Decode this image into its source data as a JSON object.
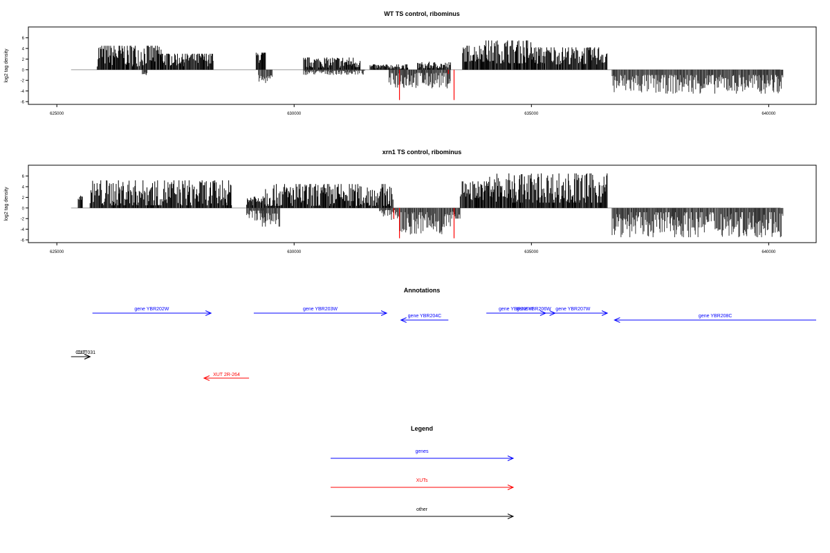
{
  "colors": {
    "forward": "#000000",
    "reverse": "#333333",
    "highlight": "#ff0000",
    "gene": "#0000ff",
    "xut": "#ff0000",
    "other": "#000000",
    "frame": "#000000",
    "zero_line": "#999999"
  },
  "chart_data": [
    {
      "type": "bar",
      "title": "WT TS control, ribominus",
      "ylabel": "log2 tag density",
      "xlim": [
        625000,
        641000
      ],
      "ylim": [
        -6,
        7
      ],
      "x_ticks": [
        625000,
        630000,
        635000,
        640000
      ],
      "x_tick_labels": [
        "625000",
        "630000",
        "635000",
        "640000"
      ],
      "y_ticks": [
        -6,
        -4,
        -2,
        0,
        2,
        4,
        6
      ],
      "y_tick_labels": [
        "-6",
        "-4",
        "-2",
        "0",
        "2",
        "4",
        "6"
      ],
      "baseline": [
        625300,
        640250
      ],
      "series": [
        {
          "strand": "+",
          "ranges": [
            [
              625850,
              627200,
              3.0,
              0.5,
              4.5
            ],
            [
              627200,
              628300,
              2.2,
              0.4,
              3.0
            ],
            [
              629200,
              629400,
              2.5,
              1.0,
              3.2
            ],
            [
              630200,
              631400,
              1.4,
              0.4,
              2.3
            ],
            [
              631600,
              632400,
              0.6,
              0.2,
              1.0
            ],
            [
              632600,
              633300,
              0.8,
              0.3,
              1.5
            ],
            [
              633550,
              634000,
              3.2,
              1.5,
              4.5
            ],
            [
              634000,
              635000,
              3.5,
              1.2,
              5.5
            ],
            [
              635000,
              636600,
              2.8,
              1.0,
              4.2
            ]
          ]
        },
        {
          "strand": "-",
          "ranges": [
            [
              626800,
              626900,
              -0.8,
              -0.5,
              -1.0
            ],
            [
              629250,
              629550,
              -1.8,
              -1.0,
              -2.5
            ],
            [
              630200,
              631500,
              -0.5,
              -0.2,
              -1.0
            ],
            [
              632000,
              633300,
              -1.8,
              -0.6,
              -3.5
            ],
            [
              636700,
              640300,
              -2.5,
              -1.0,
              -4.5
            ]
          ]
        },
        {
          "strand": "highlight",
          "points": [
            [
              632220,
              -5.7
            ],
            [
              633370,
              -5.7
            ],
            [
              633250,
              -0.8
            ]
          ]
        }
      ]
    },
    {
      "type": "bar",
      "title": "xrn1 TS control, ribominus",
      "ylabel": "log2 tag density",
      "xlim": [
        625000,
        641000
      ],
      "ylim": [
        -6,
        7
      ],
      "x_ticks": [
        625000,
        630000,
        635000,
        640000
      ],
      "x_tick_labels": [
        "625000",
        "630000",
        "635000",
        "640000"
      ],
      "y_ticks": [
        -6,
        -4,
        -2,
        0,
        2,
        4,
        6
      ],
      "y_tick_labels": [
        "-6",
        "-4",
        "-2",
        "0",
        "2",
        "4",
        "6"
      ],
      "baseline": [
        625300,
        640250
      ],
      "series": [
        {
          "strand": "+",
          "ranges": [
            [
              625450,
              625550,
              2.0,
              1.5,
              2.3
            ],
            [
              625700,
              628700,
              2.8,
              0.5,
              5.2
            ],
            [
              629000,
              629300,
              1.5,
              0.5,
              2.5
            ],
            [
              629300,
              632100,
              2.4,
              0.4,
              4.5
            ],
            [
              633500,
              634100,
              3.5,
              1.5,
              5.0
            ],
            [
              634100,
              636600,
              3.6,
              1.0,
              6.5
            ]
          ]
        },
        {
          "strand": "-",
          "ranges": [
            [
              629000,
              629400,
              -1.2,
              -0.5,
              -2.5
            ],
            [
              629300,
              629700,
              -2.2,
              -1.0,
              -3.5
            ],
            [
              631800,
              632200,
              -1.0,
              -0.4,
              -2.5
            ],
            [
              632200,
              633300,
              -2.8,
              -0.8,
              -5.0
            ],
            [
              633300,
              633500,
              -1.5,
              -0.5,
              -2.0
            ],
            [
              636700,
              640300,
              -2.8,
              -0.8,
              -5.5
            ]
          ]
        },
        {
          "strand": "highlight",
          "points": [
            [
              632220,
              -5.7
            ],
            [
              633370,
              -5.7
            ],
            [
              632100,
              -2.0
            ]
          ]
        }
      ]
    }
  ],
  "annotations": {
    "title": "Annotations",
    "genes": [
      {
        "label": "gene YBR202W",
        "start": 625750,
        "end": 628250,
        "row": 0
      },
      {
        "label": "gene YBR203W",
        "start": 629150,
        "end": 631950,
        "row": 0
      },
      {
        "label": "gene YBR204C",
        "start": 633250,
        "end": 632250,
        "row": 1
      },
      {
        "label": "gene YBR205W",
        "start": 634050,
        "end": 635300,
        "row": 0
      },
      {
        "label": "gene YBR206W",
        "start": 634600,
        "end": 635500,
        "row": 0
      },
      {
        "label": "gene YBR207W",
        "start": 635150,
        "end": 636600,
        "row": 0
      },
      {
        "label": "gene YBR208C",
        "start": 641000,
        "end": 636750,
        "row": 1
      }
    ],
    "others": [
      {
        "label": "CUT",
        "start": 625300,
        "end": 625700
      },
      {
        "label": "CUT031",
        "start": 625550,
        "end": 625700
      }
    ],
    "xuts": [
      {
        "label": "XUT 2R-264",
        "start": 629050,
        "end": 628100
      }
    ]
  },
  "legend": {
    "title": "Legend",
    "items": [
      {
        "label": "genes",
        "kind": "gene"
      },
      {
        "label": "XUTs",
        "kind": "xut"
      },
      {
        "label": "other",
        "kind": "other"
      }
    ]
  }
}
